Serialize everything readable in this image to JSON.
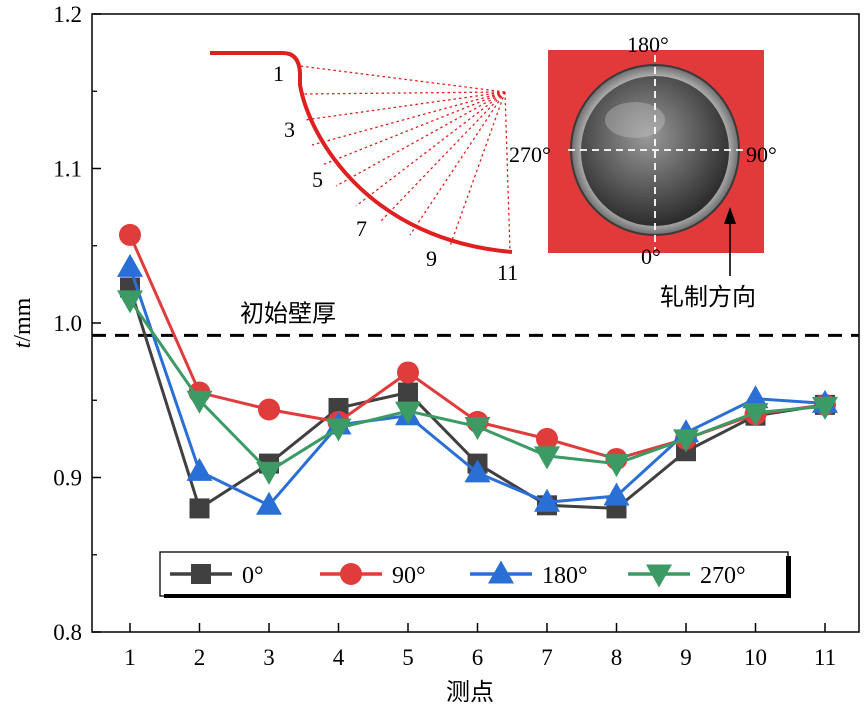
{
  "chart_data": {
    "type": "line",
    "title": "",
    "xlabel": "测点",
    "ylabel_italic": "t",
    "ylabel_unit": "/mm",
    "categories": [
      "1",
      "2",
      "3",
      "4",
      "5",
      "6",
      "7",
      "8",
      "9",
      "10",
      "11"
    ],
    "ylim": [
      0.8,
      1.2
    ],
    "yticks": [
      "0.8",
      "0.9",
      "1.0",
      "1.1",
      "1.2"
    ],
    "grid": false,
    "legend_position": "bottom",
    "reference_line": {
      "value": 0.992,
      "label": "初始壁厚",
      "style": "dashed",
      "color": "#000000"
    },
    "series": [
      {
        "name": "0°",
        "color": "#404040",
        "marker": "square",
        "values": [
          1.023,
          0.88,
          0.909,
          0.945,
          0.955,
          0.909,
          0.882,
          0.88,
          0.917,
          0.94,
          0.947
        ]
      },
      {
        "name": "90°",
        "color": "#e03c3c",
        "marker": "circle",
        "values": [
          1.057,
          0.955,
          0.944,
          0.936,
          0.968,
          0.936,
          0.925,
          0.912,
          0.925,
          0.941,
          0.947
        ]
      },
      {
        "name": "180°",
        "color": "#2a6fd6",
        "marker": "triangle-up",
        "values": [
          1.036,
          0.904,
          0.882,
          0.934,
          0.94,
          0.903,
          0.884,
          0.888,
          0.929,
          0.951,
          0.948
        ]
      },
      {
        "name": "270°",
        "color": "#3c9a64",
        "marker": "triangle-down",
        "values": [
          1.015,
          0.95,
          0.904,
          0.932,
          0.943,
          0.933,
          0.914,
          0.909,
          0.925,
          0.942,
          0.946
        ]
      }
    ],
    "inset_diagram": {
      "point_labels": [
        "1",
        "3",
        "5",
        "7",
        "9",
        "11"
      ],
      "color": "#e02020"
    },
    "inset_photo": {
      "labels": {
        "top": "180°",
        "right": "90°",
        "bottom": "0°",
        "left": "270°"
      },
      "background": "#e23a3a"
    },
    "annotation": {
      "text": "轧制方向"
    }
  }
}
